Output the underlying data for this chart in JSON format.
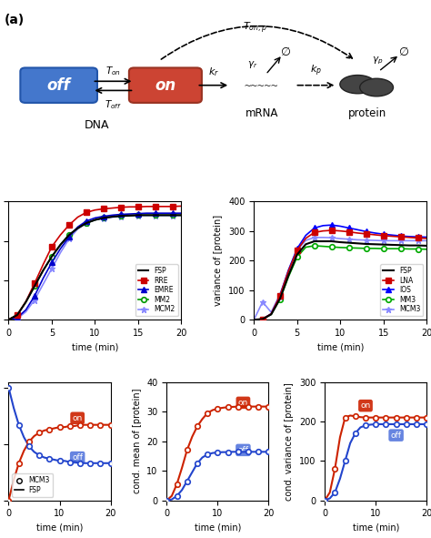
{
  "fig_width": 4.74,
  "fig_height": 5.91,
  "dpi": 100,
  "time": [
    0,
    1,
    2,
    3,
    4,
    5,
    6,
    7,
    8,
    9,
    10,
    11,
    12,
    13,
    14,
    15,
    16,
    17,
    18,
    19,
    20
  ],
  "mean_FSP": [
    0,
    1.2,
    4.5,
    8.5,
    12.5,
    16.0,
    19.0,
    21.5,
    23.2,
    24.5,
    25.3,
    25.8,
    26.1,
    26.3,
    26.4,
    26.5,
    26.5,
    26.5,
    26.5,
    26.5,
    26.5
  ],
  "mean_RRE": [
    0,
    1.2,
    4.6,
    9.2,
    14.0,
    18.5,
    21.5,
    24.0,
    26.0,
    27.2,
    27.8,
    28.1,
    28.3,
    28.5,
    28.6,
    28.6,
    28.7,
    28.7,
    28.7,
    28.7,
    28.8
  ],
  "mean_EMRE": [
    0,
    0.5,
    2.5,
    6.0,
    10.5,
    14.5,
    18.0,
    21.0,
    23.5,
    25.0,
    25.8,
    26.2,
    26.5,
    26.7,
    26.8,
    26.9,
    27.0,
    27.0,
    27.0,
    27.0,
    27.0
  ],
  "mean_MM2": [
    0,
    1.2,
    4.5,
    8.5,
    12.5,
    16.0,
    19.0,
    21.5,
    23.2,
    24.5,
    25.3,
    25.8,
    26.1,
    26.3,
    26.4,
    26.5,
    26.5,
    26.5,
    26.5,
    26.5,
    26.5
  ],
  "mean_MCM2": [
    0,
    0.3,
    2.0,
    5.0,
    9.0,
    13.0,
    17.0,
    20.5,
    23.0,
    24.5,
    25.3,
    25.7,
    26.0,
    26.2,
    26.3,
    26.4,
    26.4,
    26.4,
    26.4,
    26.4,
    26.4
  ],
  "var_FSP": [
    0,
    2,
    18,
    70,
    150,
    220,
    255,
    265,
    265,
    265,
    262,
    260,
    258,
    256,
    255,
    254,
    253,
    252,
    251,
    251,
    250
  ],
  "var_LNA": [
    0,
    2,
    20,
    80,
    165,
    235,
    275,
    295,
    300,
    302,
    300,
    297,
    293,
    290,
    287,
    284,
    282,
    280,
    278,
    276,
    275
  ],
  "var_IOS": [
    0,
    2,
    20,
    80,
    168,
    240,
    285,
    310,
    318,
    320,
    316,
    310,
    304,
    298,
    293,
    289,
    286,
    283,
    281,
    280,
    279
  ],
  "var_MM3": [
    0,
    2,
    18,
    68,
    145,
    212,
    245,
    250,
    248,
    246,
    244,
    243,
    242,
    241,
    241,
    240,
    240,
    240,
    239,
    239,
    238
  ],
  "var_MCM3": [
    0,
    60,
    25,
    85,
    165,
    235,
    268,
    278,
    278,
    277,
    274,
    272,
    270,
    269,
    268,
    267,
    267,
    267,
    267,
    267,
    267
  ],
  "prob_on": [
    0,
    0.18,
    0.33,
    0.44,
    0.52,
    0.57,
    0.6,
    0.62,
    0.63,
    0.64,
    0.65,
    0.65,
    0.66,
    0.66,
    0.67,
    0.67,
    0.67,
    0.67,
    0.67,
    0.67,
    0.67
  ],
  "prob_off": [
    1,
    0.82,
    0.67,
    0.56,
    0.48,
    0.43,
    0.4,
    0.38,
    0.37,
    0.36,
    0.35,
    0.35,
    0.34,
    0.34,
    0.33,
    0.33,
    0.33,
    0.33,
    0.33,
    0.33,
    0.33
  ],
  "cmean_on": [
    0,
    1.5,
    5.5,
    11.0,
    17.0,
    21.5,
    25.0,
    27.5,
    29.5,
    30.5,
    31.0,
    31.3,
    31.5,
    31.6,
    31.7,
    31.7,
    31.7,
    31.7,
    31.7,
    31.7,
    31.7
  ],
  "cmean_off": [
    0,
    0.3,
    1.5,
    3.5,
    6.5,
    9.5,
    12.5,
    14.5,
    15.5,
    16.0,
    16.2,
    16.3,
    16.3,
    16.4,
    16.4,
    16.4,
    16.4,
    16.4,
    16.4,
    16.4,
    16.4
  ],
  "cvar_on": [
    0,
    20,
    80,
    160,
    210,
    215,
    213,
    211,
    210,
    210,
    210,
    210,
    210,
    210,
    210,
    210,
    210,
    210,
    210,
    210,
    210
  ],
  "cvar_off": [
    0,
    5,
    20,
    55,
    100,
    145,
    170,
    185,
    190,
    192,
    193,
    193,
    193,
    193,
    193,
    193,
    193,
    193,
    193,
    193,
    193
  ],
  "colors": {
    "FSP": "#000000",
    "RRE": "#cc0000",
    "EMRE": "#0000cc",
    "MM2": "#009900",
    "MCM2": "#8888ff",
    "LNA": "#8b0000",
    "IOS": "#0000ff",
    "MM3": "#00aa00",
    "MCM3": "#8888ff",
    "on_red": "#cc2200",
    "off_blue": "#2244cc"
  },
  "scatter_times_mean": [
    1,
    3,
    5,
    7,
    9,
    11,
    13,
    15,
    17,
    19
  ],
  "scatter_times_var": [
    1,
    3,
    5,
    7,
    9,
    11,
    13,
    15,
    17,
    19
  ],
  "scatter_times_c": [
    0,
    2,
    4,
    6,
    8,
    10,
    12,
    14,
    16,
    18,
    20
  ]
}
